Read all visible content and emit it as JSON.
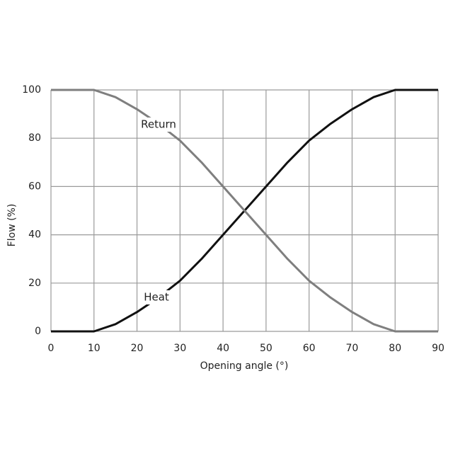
{
  "chart_data": {
    "type": "line",
    "x_label": "Opening angle (°)",
    "y_label": "Flow (%)",
    "x": [
      0,
      5,
      10,
      15,
      20,
      25,
      30,
      35,
      40,
      45,
      50,
      55,
      60,
      65,
      70,
      75,
      80,
      85,
      90
    ],
    "series": [
      {
        "name": "Heat",
        "color": "#111111",
        "values": [
          0,
          0,
          0,
          3,
          8,
          14,
          21,
          30,
          40,
          50,
          60,
          70,
          79,
          86,
          92,
          97,
          100,
          100,
          100
        ]
      },
      {
        "name": "Return",
        "color": "#7f7f7f",
        "values": [
          100,
          100,
          100,
          97,
          92,
          86,
          79,
          70,
          60,
          50,
          40,
          30,
          21,
          14,
          8,
          3,
          0,
          0,
          0
        ]
      }
    ],
    "xlim": [
      0,
      90
    ],
    "xticks": [
      0,
      10,
      20,
      30,
      40,
      50,
      60,
      70,
      80,
      90
    ],
    "ylim": [
      0,
      100
    ],
    "yticks": [
      0,
      20,
      40,
      60,
      80,
      100
    ],
    "grid": true
  }
}
